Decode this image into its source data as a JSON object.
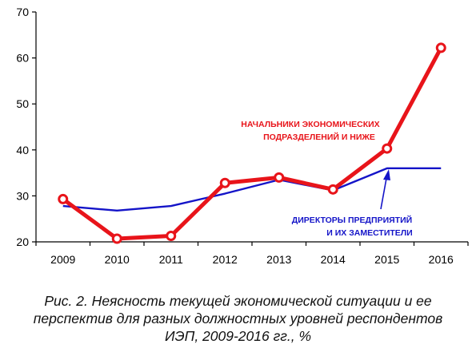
{
  "chart_data": {
    "type": "line",
    "categories": [
      "2009",
      "2010",
      "2011",
      "2012",
      "2013",
      "2014",
      "2015",
      "2016"
    ],
    "ylim": [
      20,
      70
    ],
    "y_ticks": [
      "20",
      "30",
      "40",
      "50",
      "60",
      "70"
    ],
    "grid": false,
    "series": [
      {
        "name": "НАЧАЛЬНИКИ ЭКОНОМИЧЕСКИХ ПОДРАЗДЕЛЕНИЙ И НИЖЕ",
        "label_lines": [
          "НАЧАЛЬНИКИ  ЭКОНОМИЧЕСКИХ",
          "ПОДРАЗДЕЛЕНИЙ И НИЖЕ"
        ],
        "color": "#e8141a",
        "values": [
          29.3,
          20.7,
          21.3,
          32.8,
          34.0,
          31.4,
          40.3,
          62.2
        ]
      },
      {
        "name": "ДИРЕКТОРЫ ПРЕДПРИЯТИЙ И ИХ ЗАМЕСТИТЕЛИ",
        "label_lines": [
          "ДИРЕКТОРЫ ПРЕДПРИЯТИЙ",
          "И ИХ ЗАМЕСТИТЕЛИ"
        ],
        "color": "#1414c8",
        "values": [
          27.8,
          26.8,
          27.8,
          30.5,
          33.5,
          31.2,
          36.0,
          36.0
        ]
      }
    ]
  },
  "caption": {
    "line1": "Рис. 2. Неясность текущей экономической ситуации и ее",
    "line2": "перспектив для разных должностных уровней респондентов",
    "line3": "ИЭП, 2009-2016 гг., %"
  }
}
